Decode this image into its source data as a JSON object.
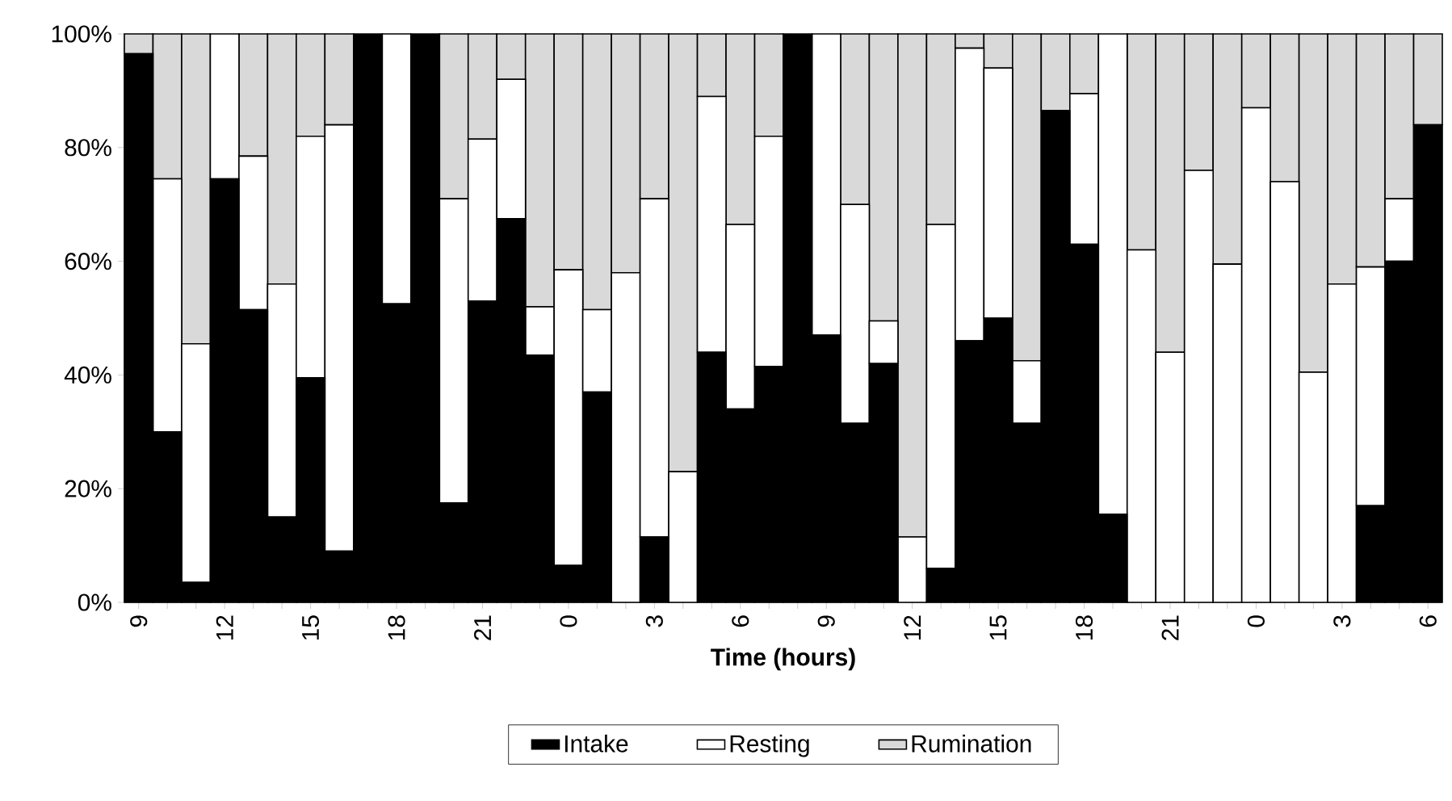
{
  "chart_data": {
    "type": "bar",
    "stacked": true,
    "xlabel": "Time (hours)",
    "categories": [
      "9",
      null,
      null,
      "12",
      null,
      null,
      "15",
      null,
      null,
      "18",
      null,
      null,
      "21",
      null,
      null,
      "0",
      null,
      null,
      "3",
      null,
      null,
      "6",
      null,
      null,
      "9",
      null,
      null,
      "12",
      null,
      null,
      "15",
      null,
      null,
      "18",
      null,
      null,
      "21",
      null,
      null,
      "0",
      null,
      null,
      "3",
      null,
      null,
      "6"
    ],
    "series": [
      {
        "name": "Intake",
        "color": "#000000",
        "values": [
          96.5,
          30,
          3.5,
          74.5,
          51.5,
          15,
          39.5,
          9,
          100,
          52.5,
          100,
          17.5,
          53,
          67.5,
          43.5,
          6.5,
          37,
          0,
          11.5,
          0,
          44,
          34,
          41.5,
          100,
          47,
          31.5,
          42,
          0,
          6,
          46,
          50,
          31.5,
          86.5,
          63,
          15.5,
          0,
          0,
          0,
          0,
          0,
          0,
          0,
          0,
          17,
          60,
          84
        ]
      },
      {
        "name": "Resting",
        "color": "#ffffff",
        "values": [
          0,
          44.5,
          42,
          25.5,
          27,
          41,
          42.5,
          75,
          0,
          47.5,
          0,
          53.5,
          28.5,
          24.5,
          8.5,
          52,
          14.5,
          58,
          59.5,
          23,
          45,
          32.5,
          40.5,
          0,
          53,
          38.5,
          7.5,
          11.5,
          60.5,
          51.5,
          44,
          11,
          0,
          26.5,
          84.5,
          62,
          44,
          76,
          59.5,
          87,
          74,
          40.5,
          56,
          42,
          11,
          0
        ]
      },
      {
        "name": "Rumination",
        "color": "#d9d9d9",
        "values": [
          3.5,
          25.5,
          54.5,
          0,
          21.5,
          44,
          18,
          16,
          0,
          0,
          0,
          29,
          18.5,
          8,
          48,
          41.5,
          48.5,
          42,
          29,
          77,
          11,
          33.5,
          18,
          0,
          0,
          30,
          50.5,
          88.5,
          33.5,
          2.5,
          6,
          57.5,
          13.5,
          10.5,
          0,
          38,
          56,
          24,
          40.5,
          13,
          26,
          59.5,
          44,
          41,
          29,
          16
        ]
      }
    ],
    "ylim": [
      0,
      100
    ],
    "yticks": [
      {
        "value": 0,
        "label": "0%"
      },
      {
        "value": 20,
        "label": "20%"
      },
      {
        "value": 40,
        "label": "40%"
      },
      {
        "value": 60,
        "label": "60%"
      },
      {
        "value": 80,
        "label": "80%"
      },
      {
        "value": 100,
        "label": "100%"
      }
    ],
    "legend": "bottom"
  }
}
